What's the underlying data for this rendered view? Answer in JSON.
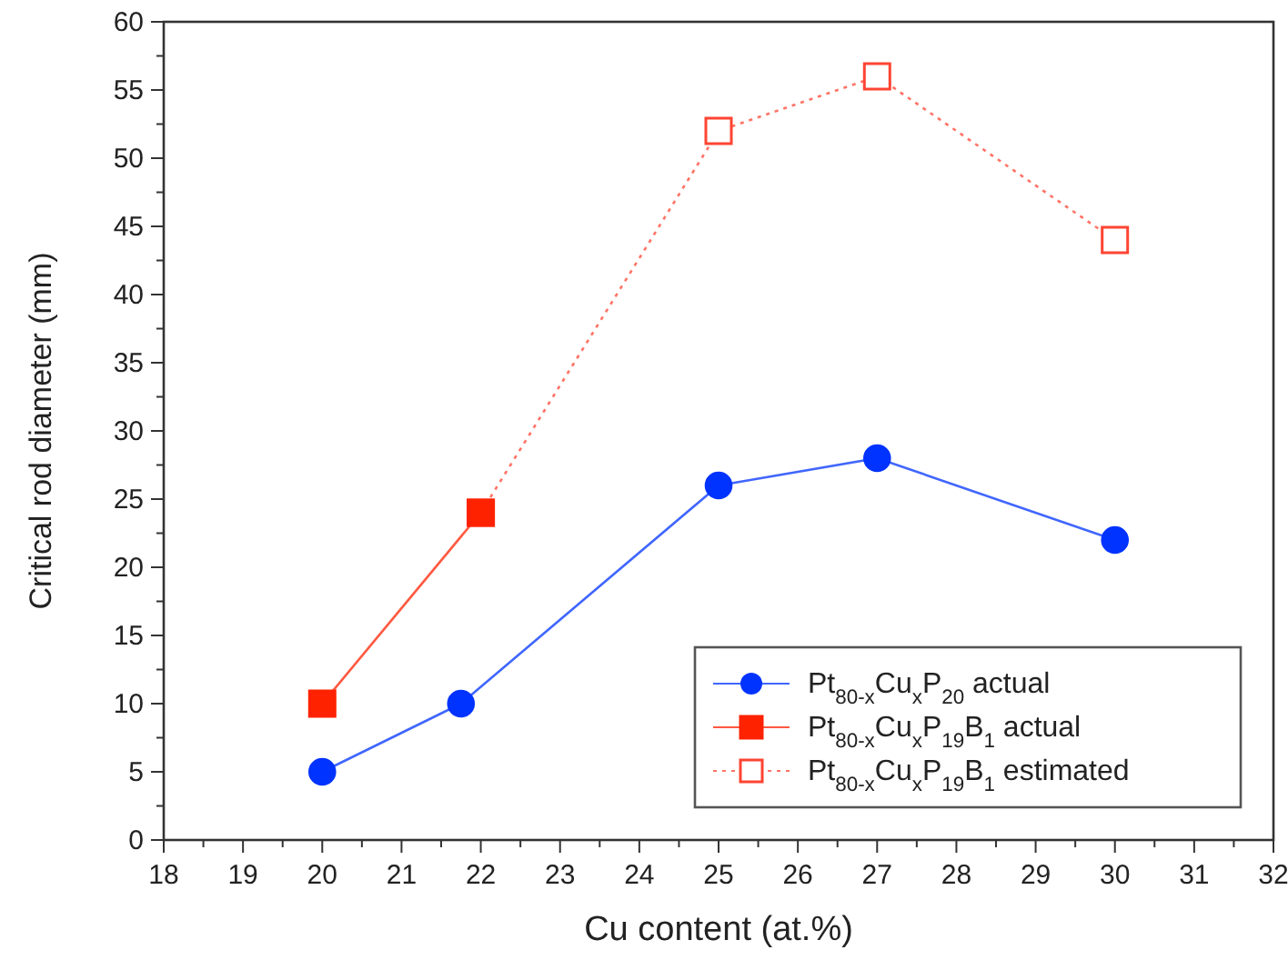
{
  "chart_data": {
    "type": "line",
    "xlabel": "Cu content (at.%)",
    "ylabel": "Critical rod diameter (mm)",
    "xlim": [
      18,
      32
    ],
    "xticks": [
      18,
      19,
      20,
      21,
      22,
      23,
      24,
      25,
      26,
      27,
      28,
      29,
      30,
      31,
      32
    ],
    "ylim": [
      0,
      60
    ],
    "yticks": [
      0,
      5,
      10,
      15,
      20,
      25,
      30,
      35,
      40,
      45,
      50,
      55,
      60
    ],
    "legend": "bottom right",
    "grid": false,
    "series": [
      {
        "name": "Pt$_{80-x}$Cu$_{x}$P$_{20}$ actual",
        "color": "#0033ff",
        "x": [
          20,
          21.75,
          25,
          27,
          30
        ],
        "values": [
          5,
          10,
          26,
          28,
          22
        ],
        "marker": "circle",
        "line_style": "solid"
      },
      {
        "name": "Pt$_{80-x}$Cu$_{x}$P$_{19}$B$_{1}$ estimated",
        "color": "#ff4433",
        "x": [
          22,
          25,
          27,
          30
        ],
        "values": [
          24,
          52,
          56,
          44
        ],
        "marker": "square",
        "line_style": "dotted"
      },
      {
        "name": "Pt$_{80-x}$Cu$_{x}$P$_{19}$B$_{1}$ actual",
        "color": "#ff2200",
        "x": [
          20,
          22
        ],
        "values": [
          10,
          24
        ],
        "marker": "square",
        "line_style": "solid"
      }
    ]
  }
}
